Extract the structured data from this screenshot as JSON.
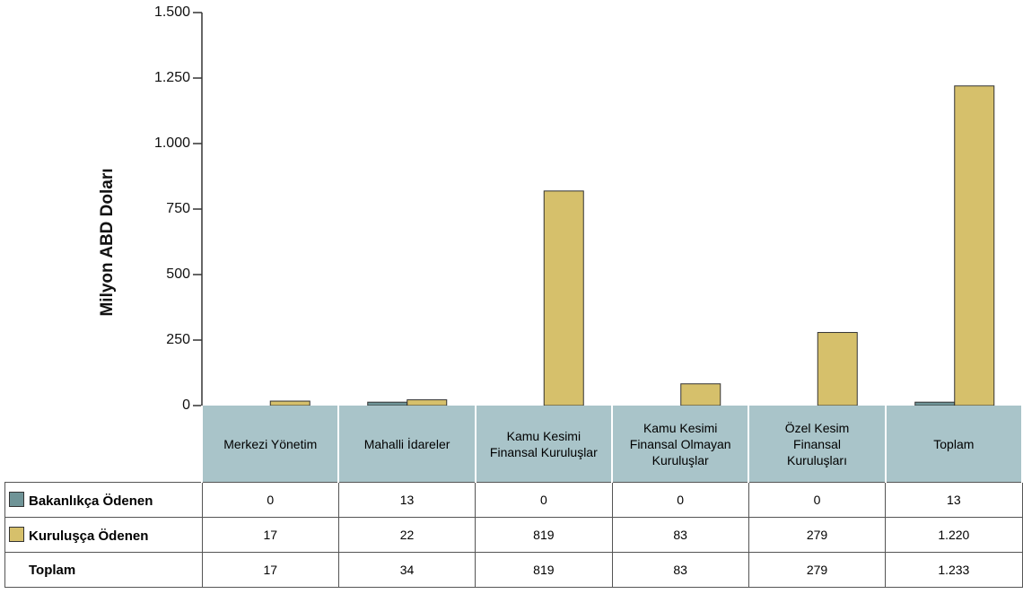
{
  "chart_data": {
    "type": "bar",
    "y_label": "Milyon ABD Doları",
    "categories": [
      "Merkezi Yönetim",
      "Mahalli İdareler",
      "Kamu Kesimi Finansal Kuruluşlar",
      "Kamu Kesimi Finansal Olmayan Kuruluşlar",
      "Özel Kesim Finansal Kuruluşları",
      "Toplam"
    ],
    "series": [
      {
        "name": "Bakanlıkça Ödenen",
        "color": "#6f9497",
        "values": [
          0,
          13,
          0,
          0,
          0,
          13
        ]
      },
      {
        "name": "Kuruluşça Ödenen",
        "color": "#d6c06b",
        "values": [
          17,
          22,
          819,
          83,
          279,
          1220
        ],
        "value_labels": [
          "17",
          "22",
          "819",
          "83",
          "279",
          "1.220"
        ]
      }
    ],
    "totals": {
      "name": "Toplam",
      "values": [
        17,
        34,
        819,
        83,
        279,
        1233
      ],
      "value_labels": [
        "17",
        "34",
        "819",
        "83",
        "279",
        "1.233"
      ]
    },
    "ylim": [
      0,
      1500
    ],
    "yticks": [
      0,
      250,
      500,
      750,
      {
        "value": 1000,
        "label": "1.000"
      },
      {
        "value": 1250,
        "label": "1.250"
      },
      {
        "value": 1500,
        "label": "1.500"
      }
    ]
  }
}
